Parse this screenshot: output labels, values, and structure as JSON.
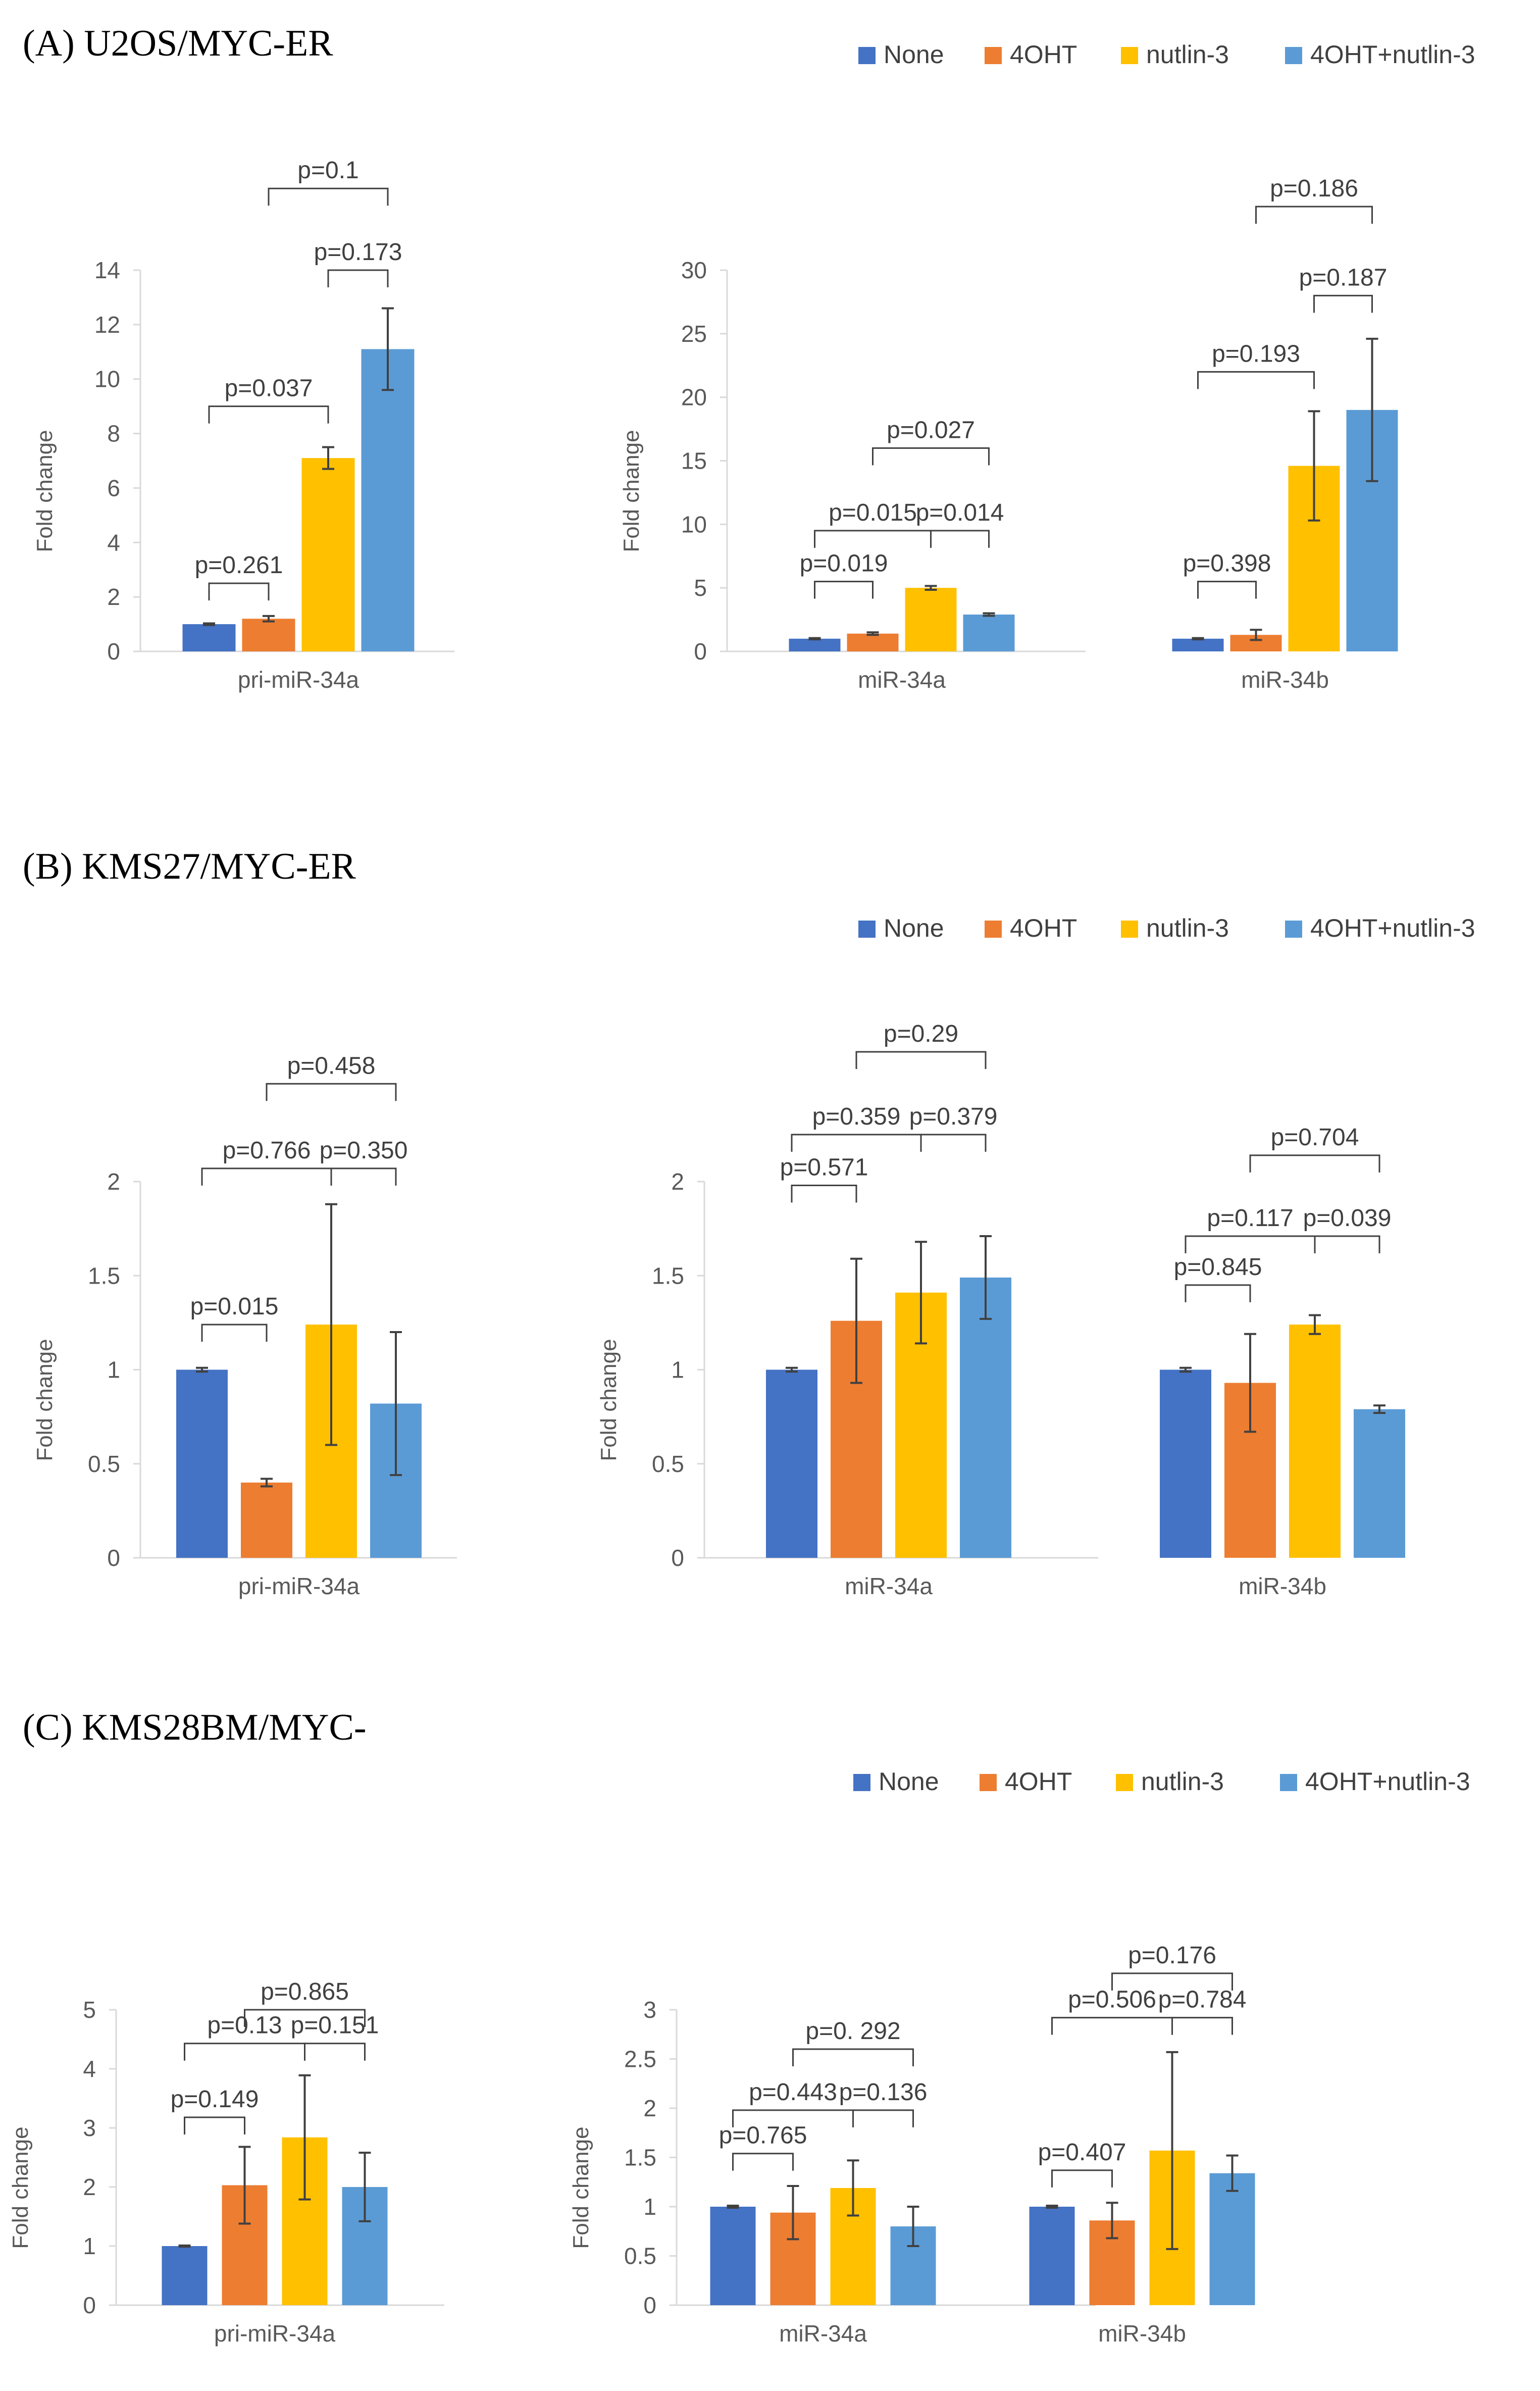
{
  "colors": {
    "None": "#4472C4",
    "4OHT": "#ED7D31",
    "nutlin-3": "#FFC000",
    "4OHT+nutlin-3": "#5B9BD5",
    "axis": "#D9D9D9",
    "text": "#595959",
    "bracket": "#404040"
  },
  "legend_entries": [
    "None",
    "4OHT",
    "nutlin-3",
    "4OHT+nutlin-3"
  ],
  "panels": [
    {
      "title": "(A) U2OS/MYC-ER",
      "charts": [
        {
          "type": "bar",
          "categories": [
            "pri-miR-34a"
          ],
          "ylabel": "Fold change",
          "ylim": [
            0,
            14
          ],
          "yticks": [
            0,
            2,
            4,
            6,
            8,
            10,
            12,
            14
          ],
          "series": [
            {
              "name": "None",
              "values": [
                1.0
              ],
              "err": [
                0.03
              ]
            },
            {
              "name": "4OHT",
              "values": [
                1.2
              ],
              "err": [
                0.1
              ]
            },
            {
              "name": "nutlin-3",
              "values": [
                7.1
              ],
              "err": [
                0.4
              ]
            },
            {
              "name": "4OHT+nutlin-3",
              "values": [
                11.1
              ],
              "err": [
                1.5
              ]
            }
          ],
          "comparisons": [
            {
              "cat": 0,
              "a": 0,
              "b": 1,
              "text": "p=0.261",
              "level": 2.5
            },
            {
              "cat": 0,
              "a": 0,
              "b": 2,
              "text": "p=0.037",
              "level": 9.0
            },
            {
              "cat": 0,
              "a": 2,
              "b": 3,
              "text": "p=0.173",
              "level": 14.0
            },
            {
              "cat": 0,
              "a": 1,
              "b": 3,
              "text": "p=0.1",
              "level": 17.0
            }
          ]
        },
        {
          "type": "bar",
          "categories": [
            "miR-34a",
            "miR-34b"
          ],
          "ylabel": "Fold change",
          "ylim": [
            0,
            30
          ],
          "yticks": [
            0,
            5,
            10,
            15,
            20,
            25,
            30
          ],
          "series": [
            {
              "name": "None",
              "values": [
                1.0,
                1.0
              ],
              "err": [
                0.05,
                0.05
              ]
            },
            {
              "name": "4OHT",
              "values": [
                1.4,
                1.3
              ],
              "err": [
                0.1,
                0.4
              ]
            },
            {
              "name": "nutlin-3",
              "values": [
                5.0,
                14.6
              ],
              "err": [
                0.15,
                4.3
              ]
            },
            {
              "name": "4OHT+nutlin-3",
              "values": [
                2.9,
                19.0
              ],
              "err": [
                0.1,
                5.6
              ]
            }
          ],
          "comparisons": [
            {
              "cat": 0,
              "a": 0,
              "b": 1,
              "text": "p=0.019",
              "level": 5.5
            },
            {
              "cat": 0,
              "a": 0,
              "b": 2,
              "text": "p=0.015",
              "level": 9.5
            },
            {
              "cat": 0,
              "a": 2,
              "b": 3,
              "text": "p=0.014",
              "level": 9.5
            },
            {
              "cat": 0,
              "a": 1,
              "b": 3,
              "text": "p=0.027",
              "level": 16.0
            },
            {
              "cat": 1,
              "a": 0,
              "b": 1,
              "text": "p=0.398",
              "level": 5.5
            },
            {
              "cat": 1,
              "a": 0,
              "b": 2,
              "text": "p=0.193",
              "level": 22.0
            },
            {
              "cat": 1,
              "a": 2,
              "b": 3,
              "text": "p=0.187",
              "level": 28.0
            },
            {
              "cat": 1,
              "a": 1,
              "b": 3,
              "text": "p=0.186",
              "level": 35.0
            }
          ]
        }
      ]
    },
    {
      "title": "(B) KMS27/MYC-ER",
      "charts": [
        {
          "type": "bar",
          "categories": [
            "pri-miR-34a"
          ],
          "ylabel": "Fold change",
          "ylim": [
            0,
            2
          ],
          "yticks": [
            0,
            0.5,
            1,
            1.5,
            2
          ],
          "series": [
            {
              "name": "None",
              "values": [
                1.0
              ],
              "err": [
                0.01
              ]
            },
            {
              "name": "4OHT",
              "values": [
                0.4
              ],
              "err": [
                0.02
              ]
            },
            {
              "name": "nutlin-3",
              "values": [
                1.24
              ],
              "err": [
                0.64
              ]
            },
            {
              "name": "4OHT+nutlin-3",
              "values": [
                0.82
              ],
              "err": [
                0.38
              ]
            }
          ],
          "comparisons": [
            {
              "cat": 0,
              "a": 0,
              "b": 1,
              "text": "p=0.015",
              "level": 1.24
            },
            {
              "cat": 0,
              "a": 0,
              "b": 2,
              "text": "p=0.766",
              "level": 2.07
            },
            {
              "cat": 0,
              "a": 2,
              "b": 3,
              "text": "p=0.350",
              "level": 2.07
            },
            {
              "cat": 0,
              "a": 1,
              "b": 3,
              "text": "p=0.458",
              "level": 2.52
            }
          ]
        },
        {
          "type": "bar",
          "categories": [
            "miR-34a",
            "miR-34b"
          ],
          "ylabel": "Fold change",
          "ylim": [
            0,
            2
          ],
          "yticks": [
            0,
            0.5,
            1,
            1.5,
            2
          ],
          "series": [
            {
              "name": "None",
              "values": [
                1.0,
                1.0
              ],
              "err": [
                0.01,
                0.01
              ]
            },
            {
              "name": "4OHT",
              "values": [
                1.26,
                0.93
              ],
              "err": [
                0.33,
                0.26
              ]
            },
            {
              "name": "nutlin-3",
              "values": [
                1.41,
                1.24
              ],
              "err": [
                0.27,
                0.05
              ]
            },
            {
              "name": "4OHT+nutlin-3",
              "values": [
                1.49,
                0.79
              ],
              "err": [
                0.22,
                0.02
              ]
            }
          ],
          "comparisons": [
            {
              "cat": 0,
              "a": 0,
              "b": 1,
              "text": "p=0.571",
              "level": 1.98
            },
            {
              "cat": 0,
              "a": 0,
              "b": 2,
              "text": "p=0.359",
              "level": 2.25
            },
            {
              "cat": 0,
              "a": 2,
              "b": 3,
              "text": "p=0.379",
              "level": 2.25
            },
            {
              "cat": 0,
              "a": 1,
              "b": 3,
              "text": "p=0.29",
              "level": 2.69
            },
            {
              "cat": 1,
              "a": 0,
              "b": 1,
              "text": "p=0.845",
              "level": 1.45
            },
            {
              "cat": 1,
              "a": 0,
              "b": 2,
              "text": "p=0.117",
              "level": 1.71
            },
            {
              "cat": 1,
              "a": 2,
              "b": 3,
              "text": "p=0.039",
              "level": 1.71
            },
            {
              "cat": 1,
              "a": 1,
              "b": 3,
              "text": "p=0.704",
              "level": 2.14
            }
          ]
        }
      ]
    },
    {
      "title": "(C)  KMS28BM/MYC-",
      "charts": [
        {
          "type": "bar",
          "categories": [
            "pri-miR-34a"
          ],
          "ylabel": "Fold change",
          "ylim": [
            0,
            5
          ],
          "yticks": [
            0,
            1,
            2,
            3,
            4,
            5
          ],
          "series": [
            {
              "name": "None",
              "values": [
                1.0
              ],
              "err": [
                0.01
              ]
            },
            {
              "name": "4OHT",
              "values": [
                2.03
              ],
              "err": [
                0.65
              ]
            },
            {
              "name": "nutlin-3",
              "values": [
                2.84
              ],
              "err": [
                1.05
              ]
            },
            {
              "name": "4OHT+nutlin-3",
              "values": [
                2.0
              ],
              "err": [
                0.58
              ]
            }
          ],
          "comparisons": [
            {
              "cat": 0,
              "a": 0,
              "b": 1,
              "text": "p=0.149",
              "level": 3.18
            },
            {
              "cat": 0,
              "a": 0,
              "b": 2,
              "text": "p=0.13",
              "level": 4.43
            },
            {
              "cat": 0,
              "a": 2,
              "b": 3,
              "text": "p=0.151",
              "level": 4.43
            },
            {
              "cat": 0,
              "a": 1,
              "b": 3,
              "text": "p=0.865",
              "level": 5.0
            }
          ]
        },
        {
          "type": "bar",
          "categories": [
            "miR-34a",
            "miR-34b"
          ],
          "ylabel": "Fold change",
          "ylim": [
            0,
            3
          ],
          "yticks": [
            0,
            0.5,
            1,
            1.5,
            2,
            2.5,
            3
          ],
          "series": [
            {
              "name": "None",
              "values": [
                1.0,
                1.0
              ],
              "err": [
                0.01,
                0.01
              ]
            },
            {
              "name": "4OHT",
              "values": [
                0.94,
                0.86
              ],
              "err": [
                0.27,
                0.18
              ]
            },
            {
              "name": "nutlin-3",
              "values": [
                1.19,
                1.57
              ],
              "err": [
                0.28,
                1.0
              ]
            },
            {
              "name": "4OHT+nutlin-3",
              "values": [
                0.8,
                1.34
              ],
              "err": [
                0.2,
                0.18
              ]
            }
          ],
          "comparisons": [
            {
              "cat": 0,
              "a": 0,
              "b": 1,
              "text": "p=0.765",
              "level": 1.54
            },
            {
              "cat": 0,
              "a": 0,
              "b": 2,
              "text": "p=0.443",
              "level": 1.98
            },
            {
              "cat": 0,
              "a": 2,
              "b": 3,
              "text": "p=0.136",
              "level": 1.98
            },
            {
              "cat": 0,
              "a": 1,
              "b": 3,
              "text": "p=0. 292",
              "level": 2.6
            },
            {
              "cat": 1,
              "a": 0,
              "b": 1,
              "text": "p=0.407",
              "level": 1.37
            },
            {
              "cat": 1,
              "a": 0,
              "b": 2,
              "text": "p=0.506",
              "level": 2.92
            },
            {
              "cat": 1,
              "a": 2,
              "b": 3,
              "text": "p=0.784",
              "level": 2.92
            },
            {
              "cat": 1,
              "a": 1,
              "b": 3,
              "text": "p=0.176",
              "level": 3.37
            }
          ]
        }
      ]
    }
  ]
}
